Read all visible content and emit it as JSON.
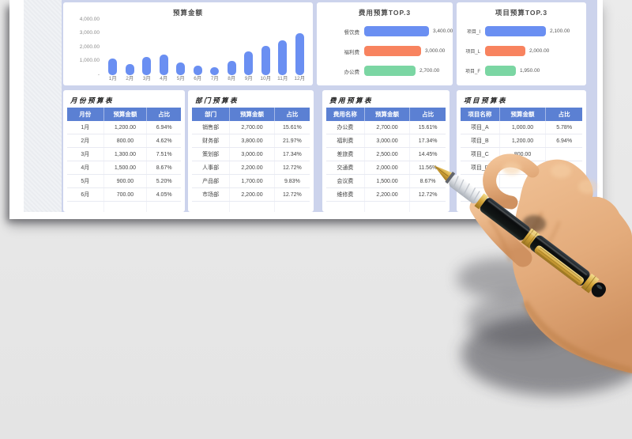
{
  "board": {
    "name": "budget-dashboard-template"
  },
  "chart_data": [
    {
      "type": "bar",
      "title": "预算金额",
      "categories": [
        "1月",
        "2月",
        "3月",
        "4月",
        "5月",
        "6月",
        "7月",
        "8月",
        "9月",
        "10月",
        "11月",
        "12月"
      ],
      "values": [
        1200,
        800,
        1300,
        1500,
        900,
        700,
        550,
        1000,
        1700,
        2100,
        2500,
        3000
      ],
      "ylim": [
        0,
        4000
      ],
      "yticks": [
        "4,000.00",
        "3,000.00",
        "2,000.00",
        "1,000.00",
        "-"
      ],
      "bar_color": "#6a8ff2",
      "grid": false,
      "legend": "none"
    },
    {
      "type": "bar_horizontal",
      "title": "费用预算TOP.3",
      "categories": [
        "餐饮费",
        "福利费",
        "办公费"
      ],
      "values": [
        3400,
        3000,
        2700
      ],
      "value_labels": [
        "3,400.00",
        "3,000.00",
        "2,700.00"
      ],
      "xlim": [
        0,
        3400
      ],
      "colors": [
        "#6a8ff2",
        "#f8835f",
        "#7bd6a3"
      ],
      "grid": false,
      "legend": "none"
    },
    {
      "type": "bar_horizontal",
      "title": "项目预算TOP.3",
      "categories": [
        "项目_I",
        "项目_L",
        "项目_F"
      ],
      "values": [
        2100,
        2000,
        1950
      ],
      "value_labels": [
        "2,100.00",
        "2,000.00",
        "1,950.00"
      ],
      "xlim": [
        1800,
        2100
      ],
      "colors": [
        "#6a8ff2",
        "#f8835f",
        "#7bd6a3"
      ],
      "grid": false,
      "legend": "none"
    }
  ],
  "tables": [
    {
      "title": "月份预算表",
      "headers": [
        "月份",
        "预算金额",
        "占比"
      ],
      "rows": [
        [
          "1月",
          "1,200.00",
          "6.94%"
        ],
        [
          "2月",
          "800.00",
          "4.62%"
        ],
        [
          "3月",
          "1,300.00",
          "7.51%"
        ],
        [
          "4月",
          "1,500.00",
          "8.67%"
        ],
        [
          "5月",
          "900.00",
          "5.20%"
        ],
        [
          "6月",
          "700.00",
          "4.05%"
        ],
        [
          "",
          "",
          ""
        ]
      ]
    },
    {
      "title": "部门预算表",
      "headers": [
        "部门",
        "预算金额",
        "占比"
      ],
      "rows": [
        [
          "销售部",
          "2,700.00",
          "15.61%"
        ],
        [
          "财务部",
          "3,800.00",
          "21.97%"
        ],
        [
          "策划部",
          "3,000.00",
          "17.34%"
        ],
        [
          "人事部",
          "2,200.00",
          "12.72%"
        ],
        [
          "产品部",
          "1,700.00",
          "9.83%"
        ],
        [
          "市场部",
          "2,200.00",
          "12.72%"
        ],
        [
          "",
          "",
          ""
        ]
      ]
    },
    {
      "title": "费用预算表",
      "headers": [
        "费用名称",
        "预算金额",
        "占比"
      ],
      "rows": [
        [
          "办公费",
          "2,700.00",
          "15.61%"
        ],
        [
          "福利费",
          "3,000.00",
          "17.34%"
        ],
        [
          "差旅费",
          "2,500.00",
          "14.45%"
        ],
        [
          "交通费",
          "2,000.00",
          "11.56%"
        ],
        [
          "会议费",
          "1,500.00",
          "8.67%"
        ],
        [
          "维修费",
          "2,200.00",
          "12.72%"
        ],
        [
          "",
          "",
          ""
        ]
      ]
    },
    {
      "title": "项目预算表",
      "headers": [
        "项目名称",
        "预算金额",
        "占比"
      ],
      "rows": [
        [
          "项目_A",
          "1,000.00",
          "5.78%"
        ],
        [
          "项目_B",
          "1,200.00",
          "6.94%"
        ],
        [
          "项目_C",
          "800.00",
          ""
        ],
        [
          "项目_D",
          "",
          ""
        ],
        [
          "",
          "",
          ""
        ],
        [
          "",
          "",
          ""
        ],
        [
          "",
          "",
          ""
        ]
      ]
    }
  ],
  "colors": {
    "dashboard_background": "#ccd3ec",
    "card_background": "#ffffff",
    "table_header": "#5b80d3",
    "bar_blue": "#6a8ff2",
    "bar_orange": "#f8835f",
    "bar_green": "#7bd6a3"
  }
}
